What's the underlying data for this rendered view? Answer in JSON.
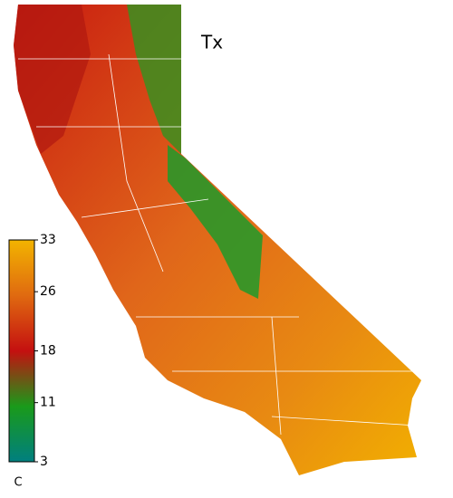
{
  "title": "Tx",
  "colorbar": {
    "lim": [
      3,
      33
    ],
    "ticks": [
      33,
      26,
      18,
      11,
      3
    ],
    "unit": "C",
    "colors": [
      "#007f7f",
      "#1a9a1a",
      "#c41010",
      "#e06a10",
      "#f2b400"
    ]
  }
}
